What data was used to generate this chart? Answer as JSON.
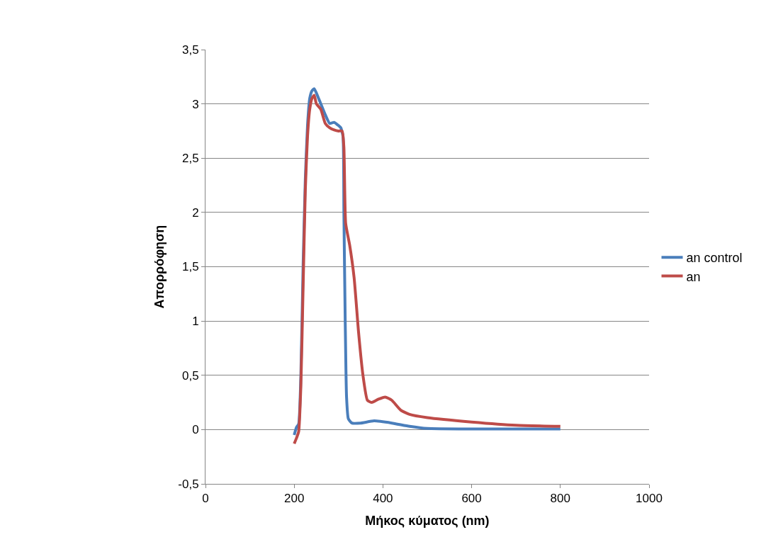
{
  "chart_data": {
    "type": "line",
    "xlabel": "Μήκος κύματος (nm)",
    "ylabel": "Απορρόφηση",
    "xlim": [
      0,
      1000
    ],
    "xticks": [
      0,
      200,
      400,
      600,
      800,
      1000
    ],
    "ylim": [
      -0.5,
      3.5
    ],
    "yticks": [
      {
        "value": -0.5,
        "label": "-0,5"
      },
      0,
      {
        "value": 0.5,
        "label": "0,5"
      },
      1,
      {
        "value": 1.5,
        "label": "1,5"
      },
      2,
      {
        "value": 2.5,
        "label": "2,5"
      },
      3,
      {
        "value": 3.5,
        "label": "3,5"
      }
    ],
    "grid": "y",
    "legend": "right",
    "marker": "none",
    "line_style": "solid",
    "series": [
      {
        "name": "an control",
        "color": "#4a7ebb",
        "x": [
          200,
          205,
          210,
          215,
          220,
          225,
          230,
          235,
          240,
          245,
          250,
          260,
          270,
          280,
          290,
          300,
          305,
          310,
          312,
          315,
          318,
          322,
          330,
          350,
          380,
          420,
          460,
          500,
          600,
          800
        ],
        "values": [
          -0.05,
          0.02,
          0.05,
          0.5,
          1.5,
          2.3,
          2.8,
          3.05,
          3.12,
          3.14,
          3.1,
          3.0,
          2.9,
          2.82,
          2.83,
          2.8,
          2.78,
          2.7,
          2.0,
          1.0,
          0.3,
          0.1,
          0.06,
          0.06,
          0.08,
          0.06,
          0.03,
          0.01,
          0.005,
          0.005
        ]
      },
      {
        "name": "an",
        "color": "#be4b48",
        "x": [
          200,
          205,
          210,
          215,
          220,
          225,
          230,
          235,
          240,
          245,
          250,
          260,
          270,
          280,
          290,
          300,
          308,
          312,
          316,
          325,
          335,
          345,
          355,
          365,
          375,
          390,
          405,
          420,
          440,
          460,
          500,
          600,
          700,
          800
        ],
        "values": [
          -0.13,
          -0.08,
          -0.02,
          0.4,
          1.3,
          2.2,
          2.7,
          2.95,
          3.05,
          3.08,
          3.0,
          2.95,
          2.82,
          2.78,
          2.76,
          2.75,
          2.75,
          2.6,
          1.9,
          1.7,
          1.4,
          0.9,
          0.5,
          0.27,
          0.25,
          0.28,
          0.3,
          0.27,
          0.18,
          0.14,
          0.11,
          0.07,
          0.04,
          0.03
        ]
      }
    ]
  }
}
